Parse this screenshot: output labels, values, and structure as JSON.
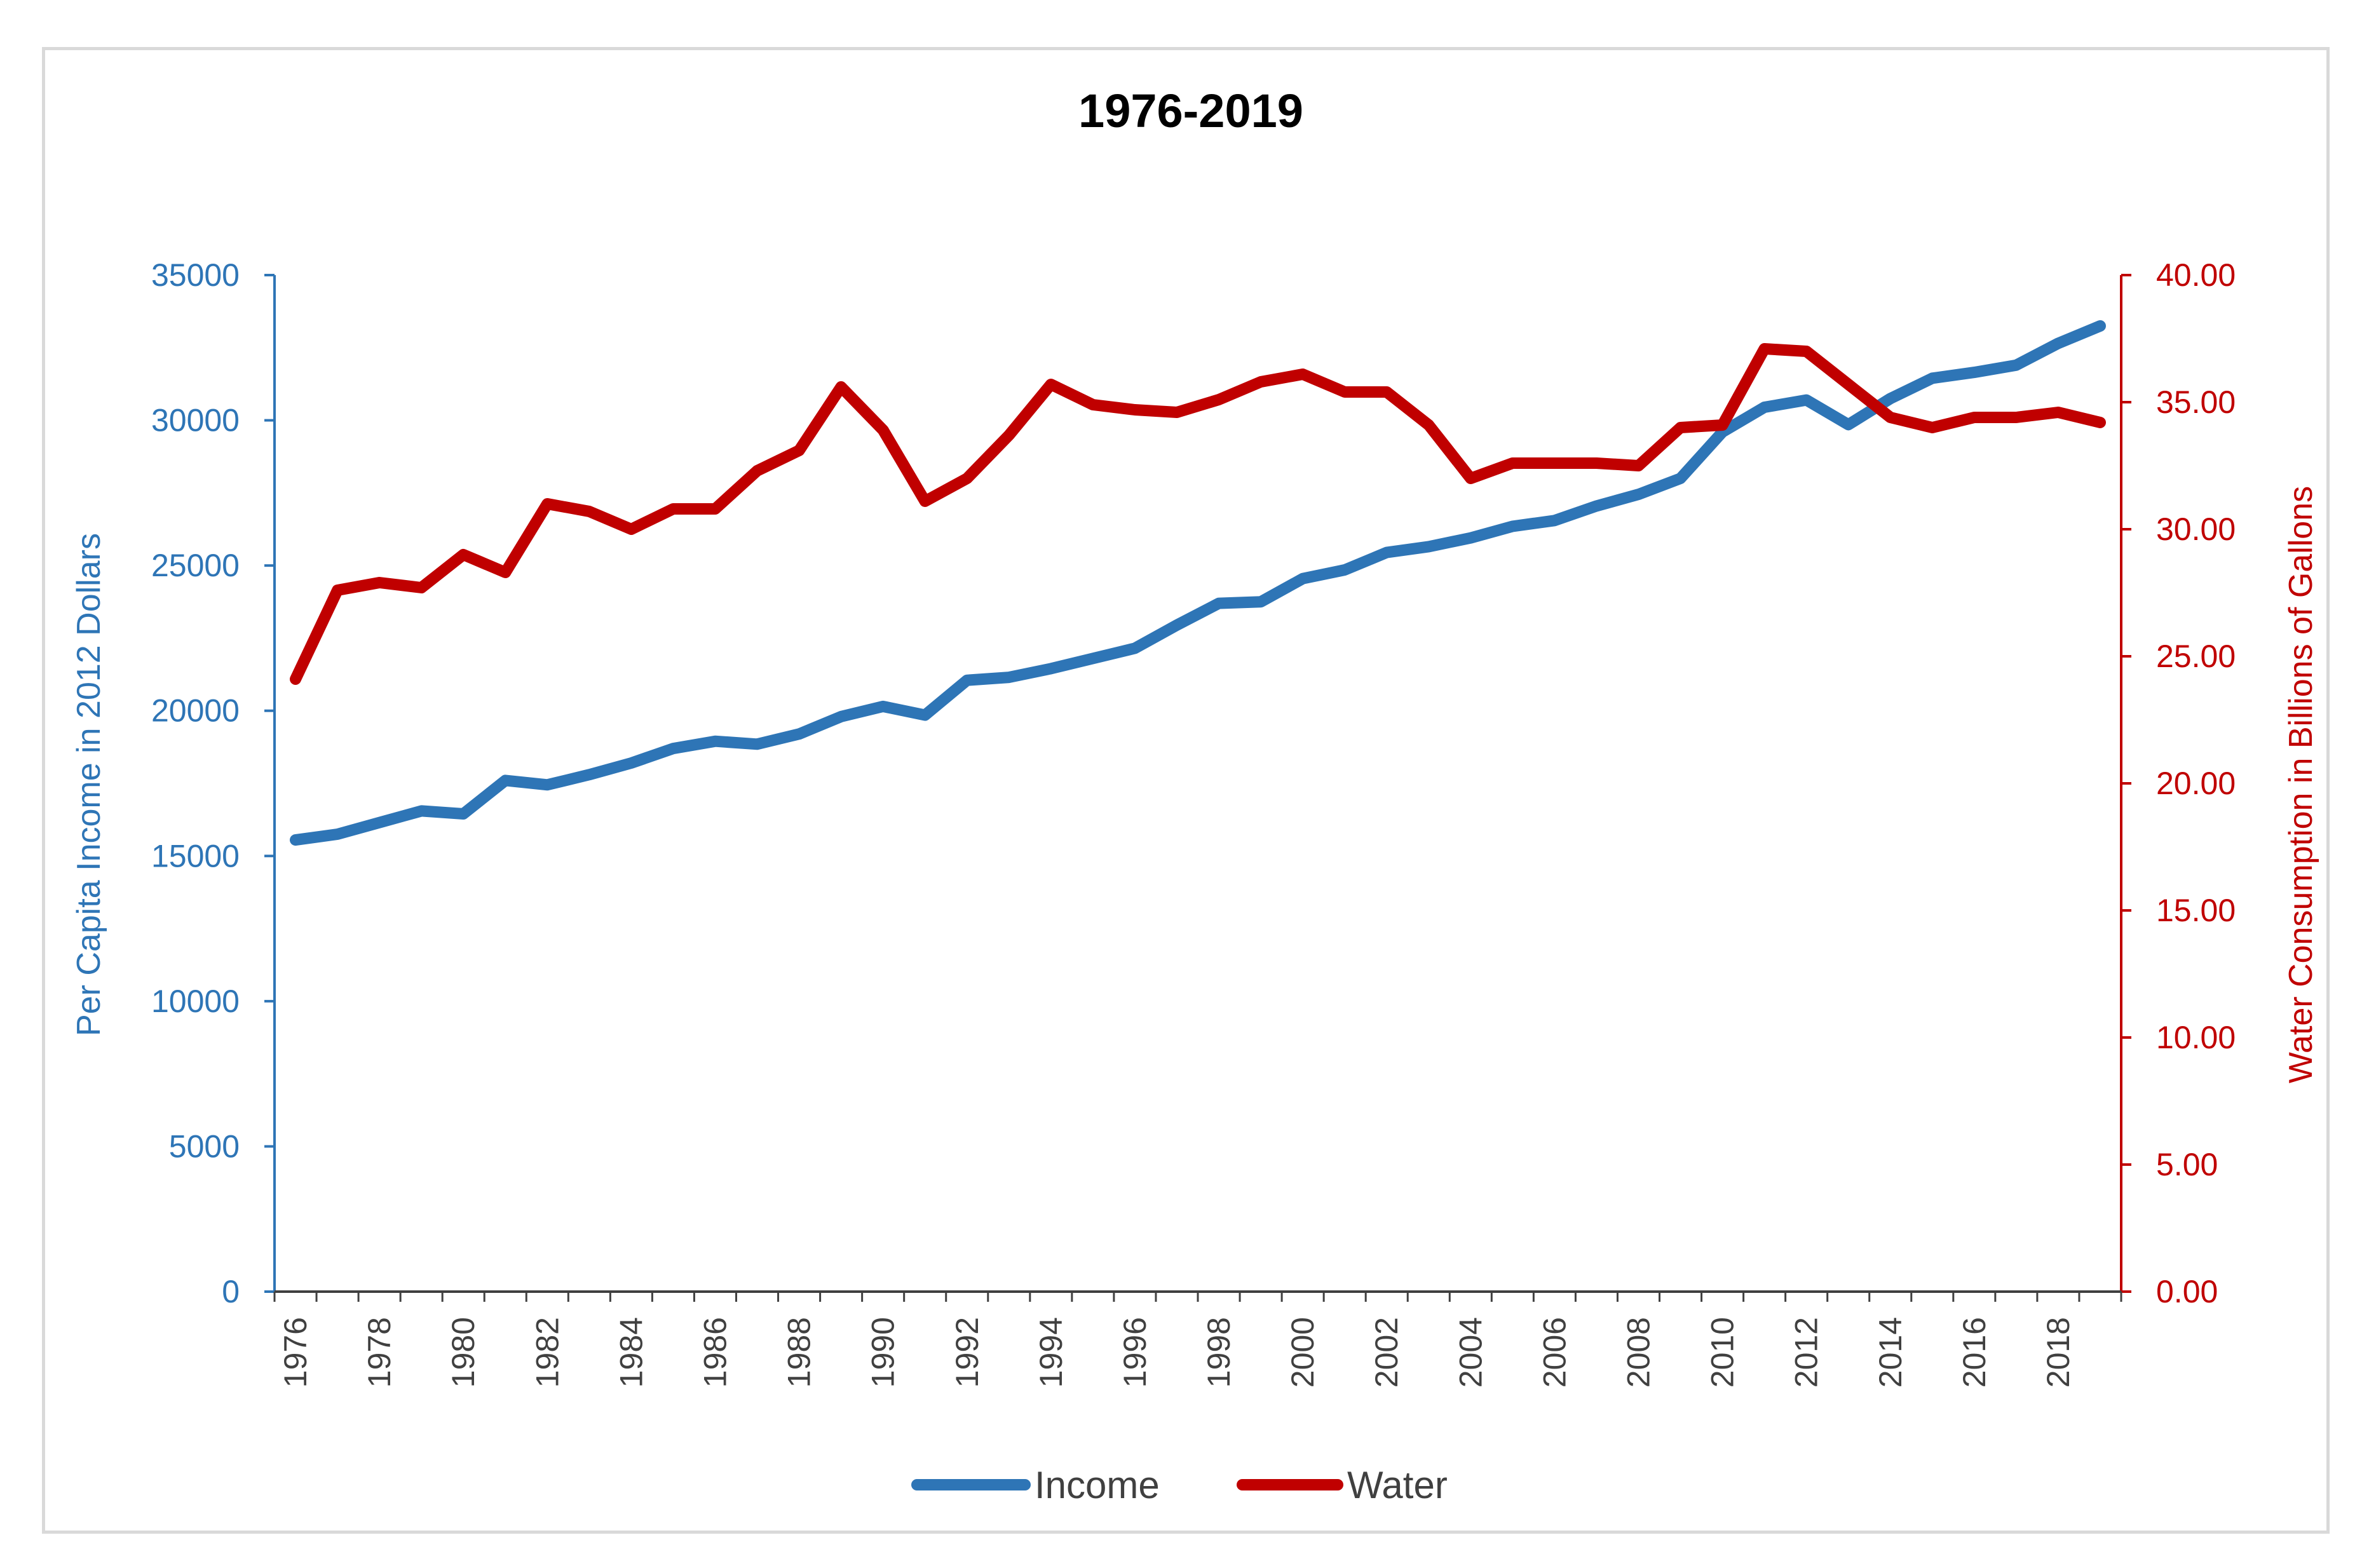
{
  "chart_data": {
    "type": "line",
    "title": "1976-2019",
    "x": [
      1976,
      1977,
      1978,
      1979,
      1980,
      1981,
      1982,
      1983,
      1984,
      1985,
      1986,
      1987,
      1988,
      1989,
      1990,
      1991,
      1992,
      1993,
      1994,
      1995,
      1996,
      1997,
      1998,
      1999,
      2000,
      2001,
      2002,
      2003,
      2004,
      2005,
      2006,
      2007,
      2008,
      2009,
      2010,
      2011,
      2012,
      2013,
      2014,
      2015,
      2016,
      2017,
      2018,
      2019
    ],
    "x_tick_labels": [
      "1976",
      "1978",
      "1980",
      "1982",
      "1984",
      "1986",
      "1988",
      "1990",
      "1992",
      "1994",
      "1996",
      "1998",
      "2000",
      "2002",
      "2004",
      "2006",
      "2008",
      "2010",
      "2012",
      "2014",
      "2016",
      "2018"
    ],
    "xlabel": "",
    "left_axis": {
      "label": "Per Capita Income in 2012 Dollars",
      "ylim": [
        0,
        35000
      ],
      "ticks": [
        "0",
        "5000",
        "10000",
        "15000",
        "20000",
        "25000",
        "30000",
        "35000"
      ],
      "color": "#2e75b6"
    },
    "right_axis": {
      "label": "Water Consumption in Billions of Gallons",
      "ylim": [
        0,
        40
      ],
      "ticks": [
        "0.00",
        "5.00",
        "10.00",
        "15.00",
        "20.00",
        "25.00",
        "30.00",
        "35.00",
        "40.00"
      ],
      "color": "#c00000"
    },
    "series": [
      {
        "name": "Income",
        "axis": "left",
        "color": "#2e75b6",
        "values": [
          15550,
          15750,
          16150,
          16550,
          16450,
          17600,
          17450,
          17800,
          18200,
          18700,
          18950,
          18850,
          19200,
          19800,
          20150,
          19850,
          21050,
          21150,
          21450,
          21800,
          22150,
          22950,
          23700,
          23750,
          24550,
          24850,
          25450,
          25650,
          25950,
          26350,
          26550,
          27050,
          27450,
          28000,
          29600,
          30450,
          30700,
          29850,
          30750,
          31450,
          31650,
          31900,
          32650,
          33250
        ]
      },
      {
        "name": "Water",
        "axis": "right",
        "color": "#c00000",
        "values": [
          24.1,
          27.6,
          27.9,
          27.7,
          29.0,
          28.3,
          31.0,
          30.7,
          30.0,
          30.8,
          30.8,
          32.3,
          33.1,
          35.6,
          33.9,
          31.1,
          32.0,
          33.7,
          35.7,
          34.9,
          34.7,
          34.6,
          35.1,
          35.8,
          36.1,
          35.4,
          35.4,
          34.1,
          32.0,
          32.6,
          32.6,
          32.6,
          32.5,
          34.0,
          34.1,
          37.1,
          37.0,
          35.7,
          34.4,
          34.0,
          34.4,
          34.4,
          34.6,
          34.2
        ]
      }
    ],
    "legend": {
      "position": "bottom",
      "entries": [
        "Income",
        "Water"
      ]
    }
  }
}
